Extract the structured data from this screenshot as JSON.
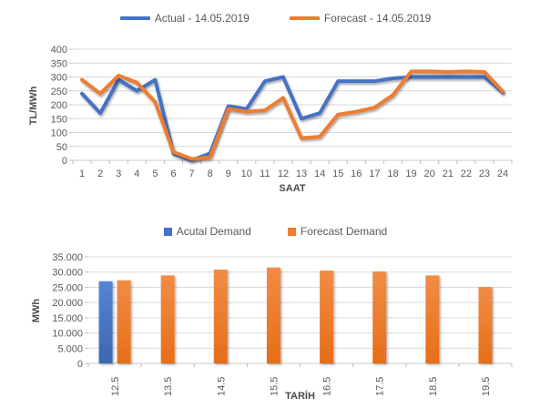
{
  "colors": {
    "actual_blue": "#4472C4",
    "forecast_orange": "#ED7D31",
    "blue_grad_top": "#5584D4",
    "blue_grad_bottom": "#3C67B4",
    "orange_grad_top": "#F18C45",
    "orange_grad_bottom": "#E66E18",
    "gridline": "#D9D9D9",
    "axis_line": "#C9C9C9",
    "tick_mark": "#BFBFBF",
    "tick_label": "#595959",
    "axis_title": "#4a4a4a",
    "legend_text": "#595959"
  },
  "chart_data": [
    {
      "type": "line",
      "title": "",
      "xlabel": "SAAT",
      "ylabel": "TL/MWh",
      "ylim": [
        0,
        400
      ],
      "ytick_interval": 50,
      "grid": true,
      "legend_position": "top",
      "x_labels": [
        "1",
        "2",
        "3",
        "4",
        "5",
        "6",
        "7",
        "8",
        "9",
        "10",
        "11",
        "12",
        "13",
        "14",
        "15",
        "16",
        "17",
        "18",
        "19",
        "20",
        "21",
        "22",
        "23",
        "24"
      ],
      "yticks": [
        {
          "v": 0,
          "label": "0"
        },
        {
          "v": 50,
          "label": "50"
        },
        {
          "v": 100,
          "label": "100"
        },
        {
          "v": 150,
          "label": "150"
        },
        {
          "v": 200,
          "label": "200"
        },
        {
          "v": 250,
          "label": "250"
        },
        {
          "v": 300,
          "label": "300"
        },
        {
          "v": 350,
          "label": "350"
        },
        {
          "v": 400,
          "label": "400"
        }
      ],
      "series": [
        {
          "name": "Actual - 14.05.2019",
          "color": "#4472C4",
          "values": [
            240,
            170,
            290,
            250,
            290,
            25,
            0,
            25,
            195,
            185,
            285,
            300,
            150,
            170,
            285,
            285,
            285,
            295,
            300,
            300,
            300,
            300,
            300,
            245
          ]
        },
        {
          "name": "Forecast - 14.05.2019",
          "color": "#ED7D31",
          "values": [
            290,
            240,
            305,
            280,
            210,
            30,
            5,
            10,
            185,
            175,
            180,
            225,
            80,
            85,
            165,
            175,
            190,
            235,
            320,
            320,
            318,
            320,
            318,
            248
          ]
        }
      ]
    },
    {
      "type": "bar",
      "title": "",
      "xlabel": "TARİH",
      "ylabel": "MWh",
      "ylim": [
        0,
        35000
      ],
      "ytick_interval": 5000,
      "grid": true,
      "legend_position": "top",
      "categories": [
        "12.5",
        "13.5",
        "14.5",
        "15.5",
        "16.5",
        "17.5",
        "18.5",
        "19.5"
      ],
      "yticks": [
        {
          "v": 0,
          "label": "0"
        },
        {
          "v": 5000,
          "label": "5.000"
        },
        {
          "v": 10000,
          "label": "10.000"
        },
        {
          "v": 15000,
          "label": "15.000"
        },
        {
          "v": 20000,
          "label": "20.000"
        },
        {
          "v": 25000,
          "label": "25.000"
        },
        {
          "v": 30000,
          "label": "30.000"
        },
        {
          "v": 35000,
          "label": "35.000"
        }
      ],
      "series": [
        {
          "name": "Acutal Demand",
          "color": "#4472C4",
          "values": [
            27000,
            null,
            null,
            null,
            null,
            null,
            null,
            null
          ]
        },
        {
          "name": "Forecast Demand",
          "color": "#ED7D31",
          "values": [
            27300,
            28900,
            30800,
            31500,
            30500,
            30200,
            28900,
            25100
          ]
        }
      ]
    }
  ]
}
